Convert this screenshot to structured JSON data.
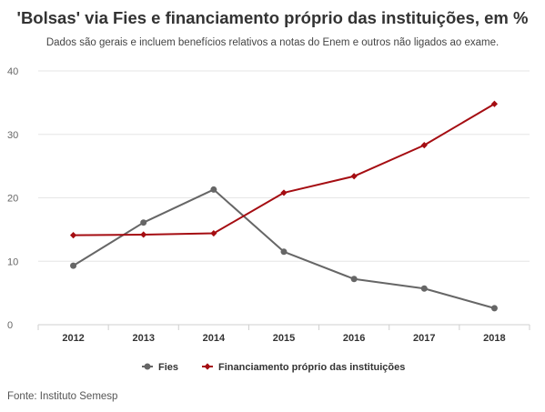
{
  "title": "'Bolsas' via Fies e financiamento próprio das instituições, em %",
  "subtitle": "Dados são gerais e incluem benefícios relativos a notas do Enem e outros não ligados ao exame.",
  "source": "Fonte: Instituto Semesp",
  "chart_data": {
    "type": "line",
    "title": "'Bolsas' via Fies e financiamento próprio das instituições, em %",
    "subtitle": "Dados são gerais e incluem benefícios relativos a notas do Enem e outros não ligados ao exame.",
    "categories": [
      "2012",
      "2013",
      "2014",
      "2015",
      "2016",
      "2017",
      "2018"
    ],
    "yticks": [
      "0",
      "10",
      "20",
      "30",
      "40"
    ],
    "ylim": [
      0,
      40
    ],
    "grid": true,
    "legend_position": "bottom",
    "series": [
      {
        "name": "Fies",
        "color": "#666666",
        "marker": "circle",
        "values": [
          9.3,
          16.1,
          21.3,
          11.5,
          7.2,
          5.7,
          2.6
        ]
      },
      {
        "name": "Financiamento próprio das instituições",
        "color": "#a50d12",
        "marker": "diamond",
        "values": [
          14.1,
          14.2,
          14.4,
          20.8,
          23.4,
          28.3,
          34.8
        ]
      }
    ]
  }
}
